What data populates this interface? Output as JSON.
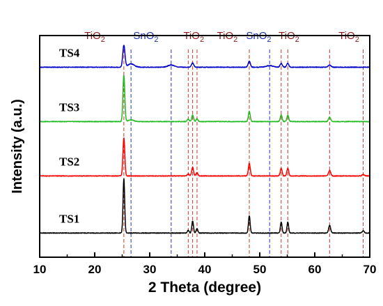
{
  "chart_data": {
    "type": "line",
    "xlabel": "2 Theta (degree)",
    "ylabel": "Intensity (a.u.)",
    "xlim": [
      10,
      70
    ],
    "xticks": [
      10,
      20,
      30,
      40,
      50,
      60,
      70
    ],
    "y_tick_labels": false,
    "grid": false,
    "layout": "vertically offset stacked XRD patterns",
    "series": [
      {
        "name": "TS1",
        "color": "#000000",
        "offset": 0,
        "baseline": 0.06,
        "peaks": [
          {
            "x": 25.3,
            "height": 1.0,
            "width": 0.15
          },
          {
            "x": 37.0,
            "height": 0.05,
            "width": 0.15
          },
          {
            "x": 37.8,
            "height": 0.22,
            "width": 0.15
          },
          {
            "x": 38.6,
            "height": 0.08,
            "width": 0.15
          },
          {
            "x": 48.1,
            "height": 0.32,
            "width": 0.15
          },
          {
            "x": 53.9,
            "height": 0.2,
            "width": 0.15
          },
          {
            "x": 55.1,
            "height": 0.2,
            "width": 0.15
          },
          {
            "x": 62.7,
            "height": 0.14,
            "width": 0.18
          },
          {
            "x": 68.8,
            "height": 0.04,
            "width": 0.18
          }
        ]
      },
      {
        "name": "TS2",
        "color": "#ff0000",
        "offset": 1.05,
        "baseline": 0.06,
        "peaks": [
          {
            "x": 25.3,
            "height": 0.7,
            "width": 0.17
          },
          {
            "x": 37.0,
            "height": 0.04,
            "width": 0.17
          },
          {
            "x": 37.8,
            "height": 0.16,
            "width": 0.17
          },
          {
            "x": 38.6,
            "height": 0.06,
            "width": 0.17
          },
          {
            "x": 48.1,
            "height": 0.23,
            "width": 0.17
          },
          {
            "x": 53.9,
            "height": 0.14,
            "width": 0.17
          },
          {
            "x": 55.1,
            "height": 0.14,
            "width": 0.17
          },
          {
            "x": 62.7,
            "height": 0.1,
            "width": 0.2
          },
          {
            "x": 68.8,
            "height": 0.03,
            "width": 0.2
          }
        ]
      },
      {
        "name": "TS3",
        "color": "#22bb22",
        "offset": 2.05,
        "baseline": 0.06,
        "peaks": [
          {
            "x": 25.3,
            "height": 0.85,
            "width": 0.17
          },
          {
            "x": 26.6,
            "height": 0.03,
            "width": 0.5
          },
          {
            "x": 37.0,
            "height": 0.05,
            "width": 0.17
          },
          {
            "x": 37.8,
            "height": 0.12,
            "width": 0.17
          },
          {
            "x": 38.6,
            "height": 0.05,
            "width": 0.17
          },
          {
            "x": 48.1,
            "height": 0.19,
            "width": 0.17
          },
          {
            "x": 53.9,
            "height": 0.12,
            "width": 0.17
          },
          {
            "x": 55.1,
            "height": 0.12,
            "width": 0.17
          },
          {
            "x": 62.7,
            "height": 0.08,
            "width": 0.2
          }
        ]
      },
      {
        "name": "TS4",
        "color": "#0000cc",
        "offset": 3.05,
        "baseline": 0.06,
        "peaks": [
          {
            "x": 25.3,
            "height": 0.4,
            "width": 0.2
          },
          {
            "x": 26.6,
            "height": 0.06,
            "width": 0.6
          },
          {
            "x": 33.9,
            "height": 0.04,
            "width": 0.6
          },
          {
            "x": 37.8,
            "height": 0.08,
            "width": 0.2
          },
          {
            "x": 48.1,
            "height": 0.11,
            "width": 0.2
          },
          {
            "x": 51.8,
            "height": 0.03,
            "width": 0.6
          },
          {
            "x": 53.9,
            "height": 0.07,
            "width": 0.2
          },
          {
            "x": 55.1,
            "height": 0.07,
            "width": 0.2
          },
          {
            "x": 62.7,
            "height": 0.04,
            "width": 0.25
          }
        ]
      }
    ],
    "reference_lines": [
      {
        "phase": "TiO2",
        "x": 25.3
      },
      {
        "phase": "SnO2",
        "x": 26.6
      },
      {
        "phase": "SnO2",
        "x": 33.9
      },
      {
        "phase": "TiO2",
        "x": 37.0
      },
      {
        "phase": "TiO2",
        "x": 37.8
      },
      {
        "phase": "TiO2",
        "x": 38.6
      },
      {
        "phase": "TiO2",
        "x": 48.1
      },
      {
        "phase": "SnO2",
        "x": 51.8
      },
      {
        "phase": "TiO2",
        "x": 53.9
      },
      {
        "phase": "TiO2",
        "x": 55.1
      },
      {
        "phase": "TiO2",
        "x": 62.7
      },
      {
        "phase": "TiO2",
        "x": 68.8
      }
    ],
    "phase_labels": [
      {
        "base": "TiO",
        "sub": "2",
        "x": 20.0,
        "color": "#8b1a1a"
      },
      {
        "base": "SnO",
        "sub": "2",
        "x": 29.3,
        "color": "#1f2fb3"
      },
      {
        "base": "TiO",
        "sub": "2",
        "x": 38.0,
        "color": "#8b1a1a"
      },
      {
        "base": "TiO",
        "sub": "2",
        "x": 44.1,
        "color": "#8b1a1a"
      },
      {
        "base": "SnO",
        "sub": "2",
        "x": 49.8,
        "color": "#1f2fb3"
      },
      {
        "base": "TiO",
        "sub": "2",
        "x": 55.3,
        "color": "#8b1a1a"
      },
      {
        "base": "TiO",
        "sub": "2",
        "x": 66.2,
        "color": "#8b1a1a"
      }
    ],
    "colors": {
      "tio2_reference": "#c0392b",
      "sno2_reference": "#2234c8",
      "axis": "#000000"
    }
  }
}
